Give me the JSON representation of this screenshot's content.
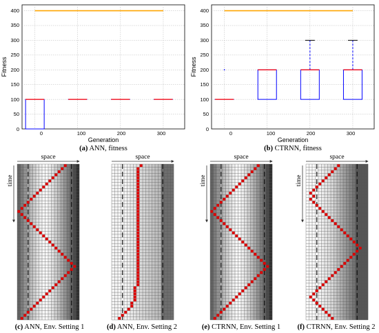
{
  "charts": [
    {
      "caption_tag": "(a)",
      "caption_text": "ANN, fitness",
      "xlabel": "Generation",
      "ylabel": "Fitness",
      "xticks": [
        "0",
        "100",
        "200",
        "300"
      ],
      "yticks": [
        "0",
        "50",
        "100",
        "150",
        "200",
        "250",
        "300",
        "350",
        "400"
      ]
    },
    {
      "caption_tag": "(b)",
      "caption_text": "CTRNN, fitness",
      "xlabel": "Generation",
      "ylabel": "Fitness",
      "xticks": [
        "0",
        "100",
        "200",
        "300"
      ],
      "yticks": [
        "0",
        "50",
        "100",
        "150",
        "200",
        "250",
        "300",
        "350",
        "400"
      ]
    }
  ],
  "grids": [
    {
      "caption_tag": "(c)",
      "caption_text": "ANN, Env. Setting 1",
      "space_label": "space",
      "time_label": "time"
    },
    {
      "caption_tag": "(d)",
      "caption_text": "ANN, Env. Setting 2",
      "space_label": "space",
      "time_label": ""
    },
    {
      "caption_tag": "(e)",
      "caption_text": "CTRNN, Env. Setting 1",
      "space_label": "space",
      "time_label": "time"
    },
    {
      "caption_tag": "(f)",
      "caption_text": "CTRNN, Env. Setting 2",
      "space_label": "space",
      "time_label": "time"
    }
  ],
  "colors": {
    "box": "#0000ff",
    "median": "#ff0000",
    "max_line": "#ffa500",
    "agent": "#dd0000",
    "grid_line": "#555555"
  },
  "chart_data": [
    {
      "type": "box",
      "title": "",
      "xlabel": "Generation",
      "ylabel": "Fitness",
      "ylim": [
        0,
        420
      ],
      "xlim": [
        -30,
        350
      ],
      "grid": true,
      "max_possible_fitness": 400,
      "max_line_x_range": [
        0,
        300
      ],
      "boxes": [
        {
          "x": 0,
          "q1": 0,
          "median": 100,
          "q3": 100,
          "whisker_low": 0,
          "whisker_high": 100
        },
        {
          "x": 100,
          "q1": 100,
          "median": 100,
          "q3": 100,
          "whisker_low": 100,
          "whisker_high": 100
        },
        {
          "x": 200,
          "q1": 100,
          "median": 100,
          "q3": 100,
          "whisker_low": 100,
          "whisker_high": 100
        },
        {
          "x": 300,
          "q1": 100,
          "median": 100,
          "q3": 100,
          "whisker_low": 100,
          "whisker_high": 100
        }
      ],
      "outliers": []
    },
    {
      "type": "box",
      "title": "",
      "xlabel": "Generation",
      "ylabel": "Fitness",
      "ylim": [
        0,
        420
      ],
      "xlim": [
        -30,
        350
      ],
      "grid": true,
      "max_possible_fitness": 400,
      "max_line_x_range": [
        0,
        300
      ],
      "boxes": [
        {
          "x": 0,
          "q1": 100,
          "median": 100,
          "q3": 100,
          "whisker_low": 100,
          "whisker_high": 100
        },
        {
          "x": 100,
          "q1": 100,
          "median": 200,
          "q3": 200,
          "whisker_low": 100,
          "whisker_high": 200
        },
        {
          "x": 200,
          "q1": 100,
          "median": 200,
          "q3": 200,
          "whisker_low": 100,
          "whisker_high": 300
        },
        {
          "x": 300,
          "q1": 100,
          "median": 200,
          "q3": 200,
          "whisker_low": 100,
          "whisker_high": 300
        }
      ],
      "outliers": [
        {
          "x": 0,
          "y": 200
        }
      ]
    },
    {
      "type": "heatmap",
      "title": "ANN, Env. Setting 1",
      "xlabel": "space",
      "ylabel": "time",
      "columns": 20,
      "rows": 51,
      "zone_boundary_columns": [
        3,
        17
      ],
      "agent_columns": [
        15,
        14,
        13,
        12,
        11,
        10,
        9,
        8,
        7,
        6,
        5,
        4,
        3,
        2,
        1,
        0,
        1,
        2,
        3,
        4,
        5,
        6,
        7,
        8,
        9,
        10,
        11,
        12,
        13,
        14,
        15,
        16,
        17,
        18,
        17,
        16,
        15,
        14,
        13,
        12,
        11,
        10,
        9,
        8,
        7,
        6,
        5,
        4,
        3,
        2,
        1
      ]
    },
    {
      "type": "heatmap",
      "title": "ANN, Env. Setting 2",
      "xlabel": "space",
      "ylabel": "",
      "columns": 20,
      "rows": 51,
      "zone_boundary_columns": [
        3,
        16
      ],
      "agent_columns": [
        9,
        8,
        8,
        8,
        8,
        8,
        8,
        8,
        8,
        8,
        8,
        8,
        8,
        8,
        8,
        8,
        8,
        8,
        8,
        8,
        8,
        8,
        8,
        8,
        8,
        8,
        8,
        8,
        8,
        8,
        8,
        8,
        8,
        8,
        8,
        8,
        8,
        8,
        8,
        8,
        7,
        7,
        7,
        7,
        7,
        6,
        6,
        5,
        4,
        3,
        2
      ]
    },
    {
      "type": "heatmap",
      "title": "CTRNN, Env. Setting 1",
      "xlabel": "space",
      "ylabel": "time",
      "columns": 20,
      "rows": 51,
      "zone_boundary_columns": [
        3,
        17
      ],
      "agent_columns": [
        15,
        14,
        13,
        12,
        11,
        10,
        9,
        8,
        7,
        6,
        5,
        4,
        3,
        2,
        1,
        0,
        1,
        2,
        3,
        4,
        5,
        6,
        7,
        8,
        9,
        10,
        11,
        12,
        13,
        14,
        15,
        16,
        17,
        18,
        17,
        16,
        15,
        14,
        13,
        12,
        11,
        10,
        9,
        8,
        7,
        6,
        5,
        4,
        3,
        2,
        1
      ]
    },
    {
      "type": "heatmap",
      "title": "CTRNN, Env. Setting 2",
      "xlabel": "space",
      "ylabel": "time",
      "columns": 20,
      "rows": 51,
      "zone_boundary_columns": [
        3,
        16
      ],
      "agent_columns": [
        10,
        9,
        8,
        7,
        6,
        5,
        4,
        3,
        2,
        1,
        2,
        1,
        2,
        3,
        4,
        5,
        6,
        7,
        8,
        9,
        10,
        11,
        12,
        13,
        14,
        15,
        16,
        17,
        16,
        15,
        14,
        13,
        12,
        11,
        10,
        9,
        8,
        7,
        6,
        5,
        4,
        3,
        2,
        1,
        2,
        3,
        4,
        5,
        6,
        7,
        8
      ]
    }
  ]
}
